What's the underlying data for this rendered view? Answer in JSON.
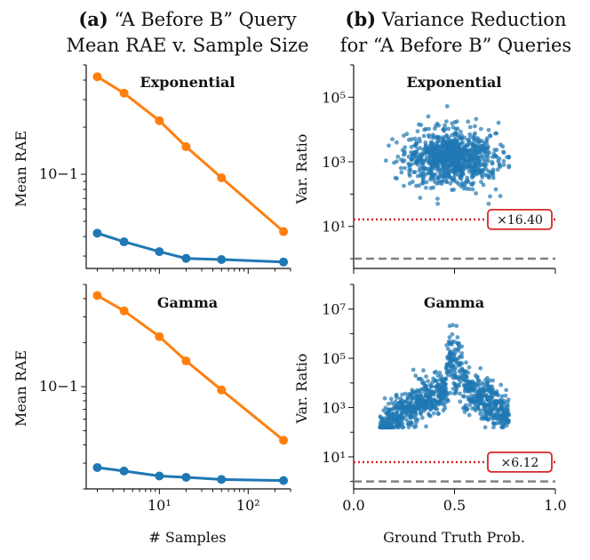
{
  "titles": {
    "a_prefix": "(a)",
    "a_line1": "“A Before B” Query",
    "a_line2": "Mean RAE v. Sample Size",
    "b_prefix": "(b)",
    "b_line1": "Variance Reduction",
    "b_line2": "for “A Before B” Queries"
  },
  "colors": {
    "orange": "#ff7f0e",
    "blue": "#1f77b4",
    "red_line": "#d62728",
    "dashed": "#808080"
  },
  "chart_data": [
    {
      "id": "a-top",
      "type": "line",
      "title": "Exponential",
      "xlabel": "",
      "ylabel": "Mean RAE",
      "xscale": "log",
      "yscale": "log",
      "x": [
        2,
        4,
        10,
        20,
        50,
        250
      ],
      "series": [
        {
          "color": "orange",
          "values": [
            0.42,
            0.33,
            0.22,
            0.15,
            0.095,
            0.043
          ]
        },
        {
          "color": "blue",
          "values": [
            0.042,
            0.037,
            0.032,
            0.029,
            0.0285,
            0.0275
          ]
        }
      ],
      "xlim": [
        1.5,
        300
      ],
      "ylim": [
        0.025,
        0.5
      ],
      "ytick_labels": [
        "10−1"
      ]
    },
    {
      "id": "a-bottom",
      "type": "line",
      "title": "Gamma",
      "xlabel": "# Samples",
      "ylabel": "Mean RAE",
      "xscale": "log",
      "yscale": "log",
      "x": [
        2,
        4,
        10,
        20,
        50,
        250
      ],
      "series": [
        {
          "color": "orange",
          "values": [
            0.42,
            0.33,
            0.22,
            0.15,
            0.095,
            0.043
          ]
        },
        {
          "color": "blue",
          "values": [
            0.028,
            0.0265,
            0.0245,
            0.024,
            0.0232,
            0.0228
          ]
        }
      ],
      "xlim": [
        1.5,
        300
      ],
      "ylim": [
        0.02,
        0.5
      ],
      "xtick_labels": [
        "10¹",
        "10²"
      ],
      "ytick_labels": [
        "10−1"
      ]
    },
    {
      "id": "b-top",
      "type": "scatter",
      "title": "Exponential",
      "xlabel": "",
      "ylabel": "Var. Ratio",
      "yscale": "log",
      "xlim": [
        0,
        1
      ],
      "ylim": [
        0.5,
        1000000
      ],
      "ytick_labels": [
        "10¹",
        "10³",
        "10⁵"
      ],
      "point_count": 900,
      "shape": "blob centered near x=0.5, y=10^3",
      "reference_lines": [
        {
          "style": "dotted",
          "color": "red_line",
          "y": 16.4,
          "label": "×16.40"
        },
        {
          "style": "dashed",
          "color": "dashed",
          "y": 1
        }
      ]
    },
    {
      "id": "b-bottom",
      "type": "scatter",
      "title": "Gamma",
      "xlabel": "Ground Truth Prob.",
      "ylabel": "Var. Ratio",
      "yscale": "log",
      "xlim": [
        0,
        1
      ],
      "xtick_labels": [
        "0.0",
        "0.5",
        "1.0"
      ],
      "ylim": [
        0.5,
        100000000
      ],
      "ytick_labels": [
        "10¹",
        "10³",
        "10⁵",
        "10⁷"
      ],
      "point_count": 1000,
      "shape": "two arms rising toward a peak near x=0.5",
      "reference_lines": [
        {
          "style": "dotted",
          "color": "red_line",
          "y": 6.12,
          "label": "×6.12"
        },
        {
          "style": "dashed",
          "color": "dashed",
          "y": 1
        }
      ]
    }
  ]
}
